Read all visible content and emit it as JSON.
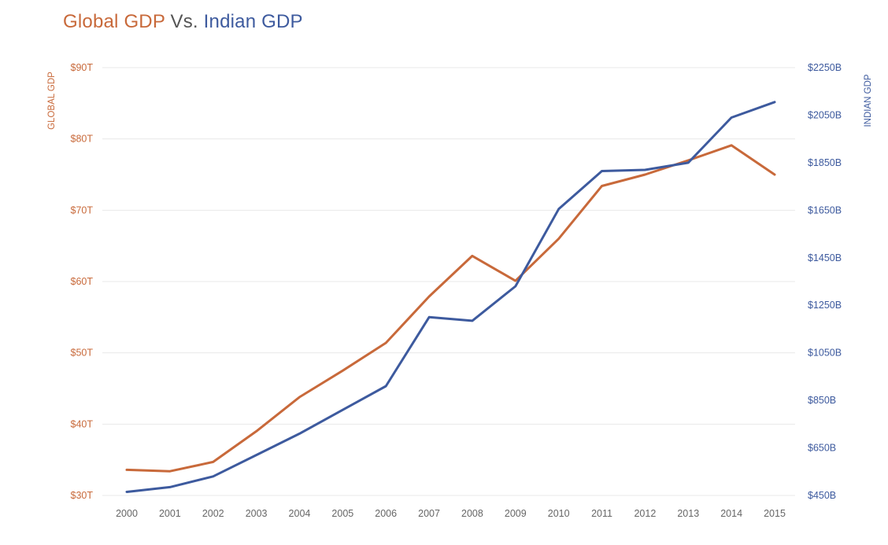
{
  "title": {
    "part1": "Global GDP",
    "part2": "Vs.",
    "part3": "Indian GDP"
  },
  "colors": {
    "global": "#c8693a",
    "indian": "#3d5a9e",
    "vs": "#555555",
    "grid": "#e8e8e8",
    "xtick": "#666666"
  },
  "chart_data": {
    "type": "line",
    "title": "Global GDP Vs. Indian GDP",
    "x": [
      "2000",
      "2001",
      "2002",
      "2003",
      "2004",
      "2005",
      "2006",
      "2007",
      "2008",
      "2009",
      "2010",
      "2011",
      "2012",
      "2013",
      "2014",
      "2015"
    ],
    "series": [
      {
        "name": "Global GDP",
        "axis": "left",
        "unit": "trillion USD",
        "values": [
          33.6,
          33.4,
          34.7,
          39.0,
          43.8,
          47.5,
          51.4,
          57.9,
          63.6,
          60.1,
          66.0,
          73.4,
          75.0,
          77.0,
          79.1,
          75.0
        ]
      },
      {
        "name": "Indian GDP",
        "axis": "right",
        "unit": "billion USD",
        "values": [
          465,
          485,
          530,
          620,
          710,
          810,
          910,
          1200,
          1185,
          1330,
          1655,
          1815,
          1820,
          1850,
          2040,
          2105
        ]
      }
    ],
    "left_axis": {
      "label": "GLOBAL GDP",
      "ylim": [
        30,
        90
      ],
      "ticks": [
        30,
        40,
        50,
        60,
        70,
        80,
        90
      ],
      "tick_labels": [
        "$30T",
        "$40T",
        "$50T",
        "$60T",
        "$70T",
        "$80T",
        "$90T"
      ]
    },
    "right_axis": {
      "label": "INDIAN GDP",
      "ylim": [
        450,
        2250
      ],
      "ticks": [
        450,
        650,
        850,
        1050,
        1250,
        1450,
        1650,
        1850,
        2050,
        2250
      ],
      "tick_labels": [
        "$450B",
        "$650B",
        "$850B",
        "$1050B",
        "$1250B",
        "$1450B",
        "$1650B",
        "$1850B",
        "$2050B",
        "$2250B"
      ]
    },
    "grid": true,
    "legend": "none"
  }
}
